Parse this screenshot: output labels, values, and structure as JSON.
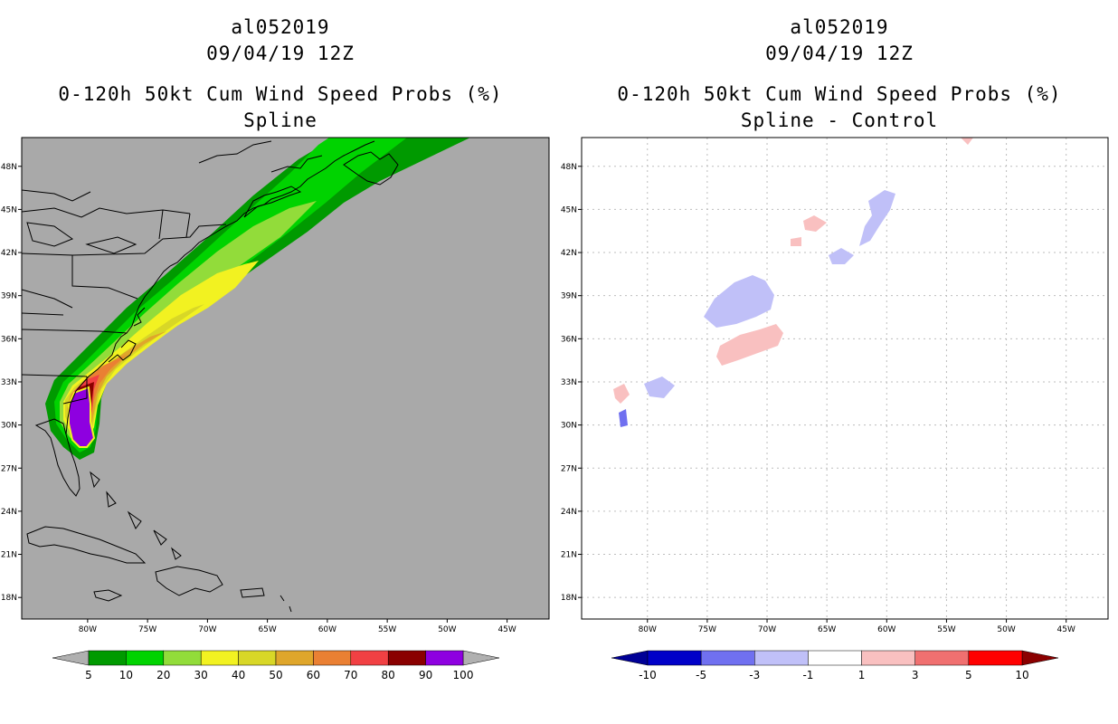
{
  "left_panel": {
    "storm_id": "al052019",
    "datetime": "09/04/19 12Z",
    "product": "0-120h 50kt Cum Wind Speed Probs (%)",
    "method": "Spline",
    "background_color": "#a9a9a9"
  },
  "right_panel": {
    "storm_id": "al052019",
    "datetime": "09/04/19 12Z",
    "product": "0-120h 50kt Cum Wind Speed Probs (%)",
    "method": "Spline - Control",
    "background_color": "#ffffff"
  },
  "map_axes": {
    "lon_labels": [
      "80W",
      "75W",
      "70W",
      "65W",
      "60W",
      "55W",
      "50W",
      "45W"
    ],
    "lat_labels": [
      "48N",
      "45N",
      "42N",
      "39N",
      "36N",
      "33N",
      "30N",
      "27N",
      "24N",
      "21N",
      "18N"
    ],
    "lon_range": [
      -85.5,
      -41.5
    ],
    "lat_range": [
      16.5,
      50.0
    ]
  },
  "left_colorbar": {
    "labels": [
      "5",
      "10",
      "20",
      "30",
      "40",
      "50",
      "60",
      "70",
      "80",
      "90",
      "100"
    ],
    "colors": [
      "#009a00",
      "#00d300",
      "#92dc3a",
      "#f2f221",
      "#d8d727",
      "#dfa62b",
      "#ea8033",
      "#f14043",
      "#8a0000",
      "#8e00e0"
    ],
    "arrow_color": "#b0b0b0"
  },
  "right_colorbar": {
    "labels": [
      "-10",
      "-5",
      "-3",
      "-1",
      "1",
      "3",
      "5",
      "10"
    ],
    "colors": [
      "#0000c8",
      "#7070f0",
      "#c0c0f8",
      "#ffffff",
      "#f9c0c0",
      "#f07070",
      "#ff0000"
    ],
    "low_arrow_color": "#000096",
    "high_arrow_color": "#8b0000"
  },
  "icons": {
    "left": "probability-swath-map-icon",
    "right": "difference-map-icon"
  }
}
